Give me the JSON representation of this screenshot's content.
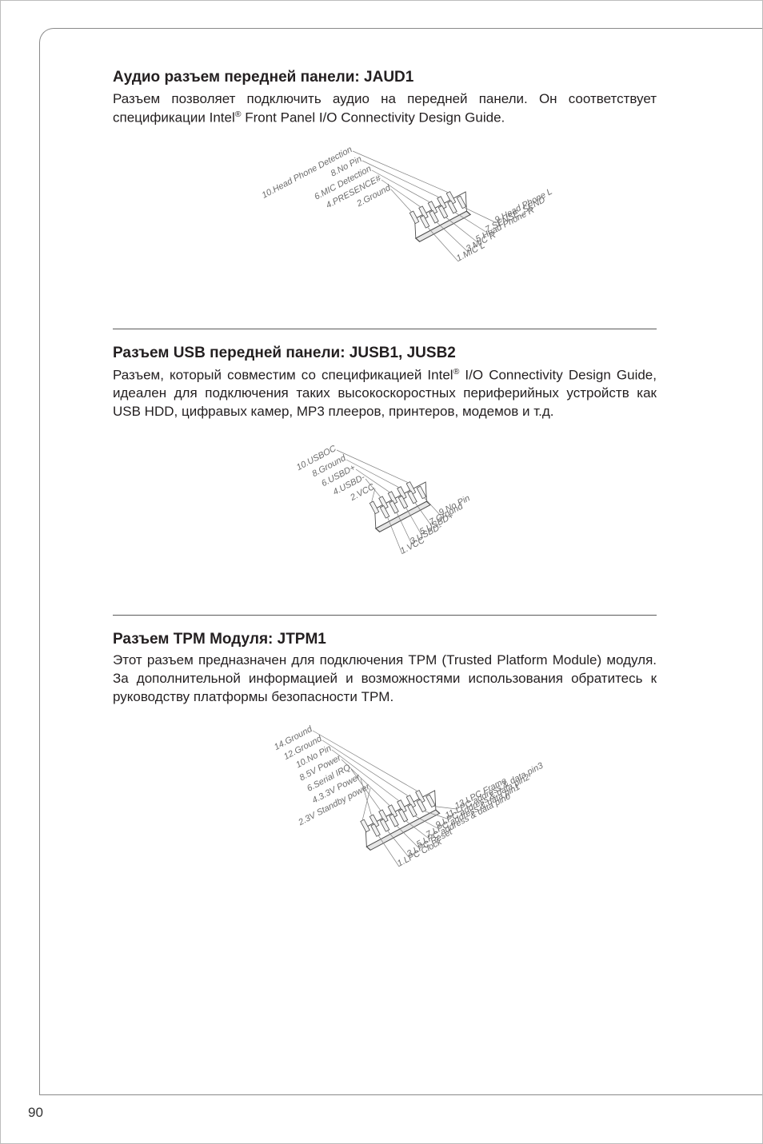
{
  "page_number": "90",
  "jaud1": {
    "title": "Аудио разъем передней панели: JAUD1",
    "body_before_sup": "Разъем позволяет подключить аудио на передней панели. Он соответствует спецификации Intel",
    "sup": "®",
    "body_after_sup": " Front Panel I/O Connectivity Design Guide.",
    "pins_left": [
      "10.Head Phone Detection",
      "8.No Pin",
      "6.MIC Detection",
      "4.PRESENCE#",
      "2.Ground"
    ],
    "pins_right": [
      "9.Head Phone L",
      "7.SENSE_SEND",
      "5.Head Phone R",
      "3.MIC R",
      "1.MIC L"
    ]
  },
  "jusb": {
    "title": "Разъем USB передней панели: JUSB1, JUSB2",
    "body_before_sup": "Разъем, который совместим со спецификацией Intel",
    "sup": "®",
    "body_after_sup": " I/O Connectivity Design Guide, идеален для подключения таких высокоскоростных периферийных устройств как USB HDD, цифравых камер, MP3 плееров, принтеров, модемов и т.д.",
    "pins_left": [
      "10.USBOC",
      "8.Ground",
      "6.USBD+",
      "4.USBD-",
      "2.VCC"
    ],
    "pins_right": [
      "9.No Pin",
      "7.Ground",
      "5.USBD+",
      "3.USBD-",
      "1.VCC"
    ]
  },
  "jtpm1": {
    "title": "Разъем TPM Модуля: JTPM1",
    "body": "Этот разъем предназначен для подключения TPM (Trusted Platform Module) модуля. За дополнительной информацией и возможностями использования обратитесь к руководству платформы безопасности TPM.",
    "pins_left": [
      "14.Ground",
      "12.Ground",
      "10.No Pin",
      "8.5V Power",
      "6.Serial IRQ",
      "4.3.3V Power",
      "2.3V Standby power"
    ],
    "pins_right": [
      "13.LPC Frame",
      "11.LPC address & data pin3",
      "9.LPC address & data pin2",
      "7.LPC address & data pin1",
      "5.LPC address & data pin0",
      "3.LPC Reset",
      "1.LPC Clock"
    ]
  },
  "diagram_style": {
    "label_color": "#6c6c6c",
    "leader_color": "#808080",
    "pin_fill": "#f2f2f2",
    "pin_stroke": "#4d4d4d",
    "header_body_fill": "#ffffff",
    "header_body_stroke": "#4d4d4d",
    "rotation_deg": -28
  }
}
